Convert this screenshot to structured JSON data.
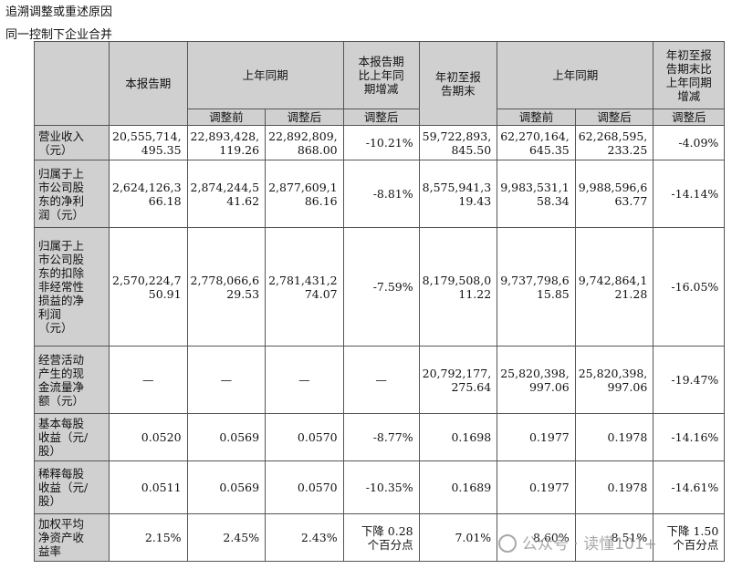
{
  "heading1": "追溯调整或重述原因",
  "heading2": "同一控制下企业合并",
  "header": {
    "current_period": "本报告期",
    "same_period_last_year": "上年同期",
    "yoy_change": "本报告期\n比上年同\n期增减",
    "ytd": "年初至报\n告期末",
    "same_period_last_year_2": "上年同期",
    "ytd_yoy_change": "年初至报\n告期末比\n上年同期\n增减",
    "before_adj": "调整前",
    "after_adj": "调整后",
    "adjusted": "调整后",
    "before_adj_2": "调整前",
    "after_adj_2": "调整后",
    "adjusted_2": "调整后"
  },
  "rows": [
    {
      "label": "营业收入\n（元）",
      "cells": [
        "20,555,714,\n495.35",
        "22,893,428,\n119.26",
        "22,892,809,\n868.00",
        "-10.21%",
        "59,722,893,\n845.50",
        "62,270,164,\n645.35",
        "62,268,595,\n233.25",
        "-4.09%"
      ]
    },
    {
      "label": "归属于上\n市公司股\n东的净利\n润（元）",
      "cells": [
        "2,624,126,3\n66.18",
        "2,874,244,5\n41.62",
        "2,877,609,1\n86.16",
        "-8.81%",
        "8,575,941,3\n19.43",
        "9,983,531,1\n58.34",
        "9,988,596,6\n63.77",
        "-14.14%"
      ]
    },
    {
      "label": "归属于上\n市公司股\n东的扣除\n非经常性\n损益的净\n利润\n（元）",
      "cells": [
        "2,570,224,7\n50.91",
        "2,778,066,6\n29.53",
        "2,781,431,2\n74.07",
        "-7.59%",
        "8,179,508,0\n11.22",
        "9,737,798,6\n15.85",
        "9,742,864,1\n21.28",
        "-16.05%"
      ]
    },
    {
      "label": "经营活动\n产生的现\n金流量净\n额（元）",
      "cells": [
        "—",
        "—",
        "—",
        "—",
        "20,792,177,\n275.64",
        "25,820,398,\n997.06",
        "25,820,398,\n997.06",
        "-19.47%"
      ]
    },
    {
      "label": "基本每股\n收益（元/\n股）",
      "cells": [
        "0.0520",
        "0.0569",
        "0.0570",
        "-8.77%",
        "0.1698",
        "0.1977",
        "0.1978",
        "-14.16%"
      ]
    },
    {
      "label": "稀释每股\n收益（元/\n股）",
      "cells": [
        "0.0511",
        "0.0569",
        "0.0570",
        "-10.35%",
        "0.1689",
        "0.1977",
        "0.1978",
        "-14.61%"
      ]
    },
    {
      "label": "加权平均\n净资产收\n益率",
      "cells": [
        "2.15%",
        "2.45%",
        "2.43%",
        "下降 0.28\n个百分点",
        "7.01%",
        "8.60%",
        "8.51%",
        "下降 1.50\n个百分点"
      ]
    }
  ],
  "watermark": "公众号 · 读懂101+"
}
